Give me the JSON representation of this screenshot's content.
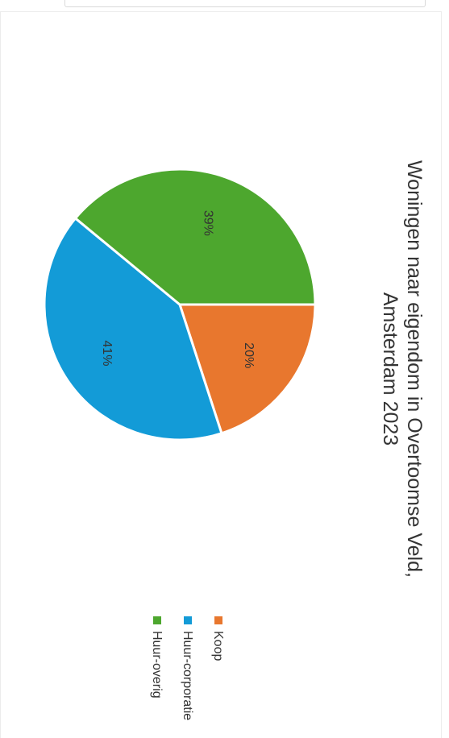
{
  "chart_data": {
    "type": "pie",
    "title_lines": [
      "Woningen naar eigendom in Overtoomse Veld,",
      "Amsterdam 2023"
    ],
    "slices": [
      {
        "label": "Koop",
        "value": 20,
        "display": "20%",
        "color": "#e8772e"
      },
      {
        "label": "Huur-corporatie",
        "value": 41,
        "display": "41%",
        "color": "#139bd7"
      },
      {
        "label": "Huur-overig",
        "value": 39,
        "display": "39%",
        "color": "#4da72e"
      }
    ],
    "legend_placement": "bottom"
  }
}
